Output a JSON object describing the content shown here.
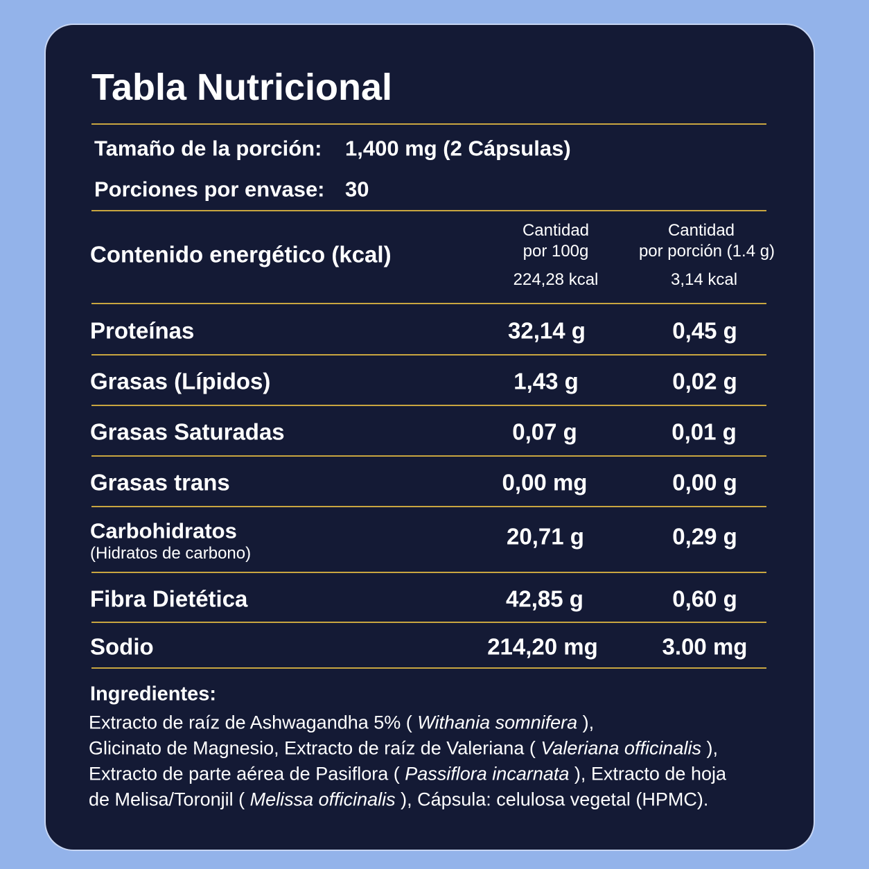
{
  "title": "Tabla Nutricional",
  "serving": {
    "label": "Tamaño de la porción:",
    "value": "1,400 mg (2 Cápsulas)"
  },
  "servings": {
    "label": "Porciones por envase:",
    "value": "30"
  },
  "energy": {
    "label": "Contenido energético (kcal)",
    "columns": [
      {
        "header": [
          "Cantidad",
          "por 100g"
        ],
        "value": "224,28 kcal"
      },
      {
        "header": [
          "Cantidad",
          "por porción (1.4 g)"
        ],
        "value": "3,14 kcal"
      }
    ]
  },
  "rows": [
    {
      "label": "Proteínas",
      "values": [
        "32,14 g",
        "0,45 g"
      ]
    },
    {
      "label": "Grasas (Lípidos)",
      "values": [
        "1,43 g",
        "0,02 g"
      ]
    },
    {
      "label": "Grasas Saturadas",
      "values": [
        "0,07 g",
        "0,01 g"
      ]
    },
    {
      "label": "Grasas trans",
      "values": [
        "0,00 mg",
        "0,00 g"
      ]
    },
    {
      "label": "Carbohidratos",
      "sublabel": "(Hidratos de carbono)",
      "values": [
        "20,71 g",
        "0,29 g"
      ]
    },
    {
      "label": "Fibra Dietética",
      "values": [
        "42,85 g",
        "0,60 g"
      ]
    },
    {
      "label": "Sodio",
      "values": [
        "214,20 mg",
        "3.00 mg"
      ]
    }
  ],
  "ingredients": {
    "title": "Ingredientes:",
    "lines": [
      [
        "Extracto de raíz de Ashwagandha 5% ( ",
        "Withania somnifera",
        " ),"
      ],
      [
        "Glicinato de Magnesio, Extracto de raíz de Valeriana ( ",
        "Valeriana officinalis",
        " ),"
      ],
      [
        "Extracto de parte aérea de Pasiflora ( ",
        "Passiflora incarnata",
        " ), Extracto de hoja"
      ],
      [
        "de Melisa/Toronjil ( ",
        "Melissa officinalis",
        " ), Cápsula: celulosa vegetal (HPMC)."
      ]
    ]
  }
}
